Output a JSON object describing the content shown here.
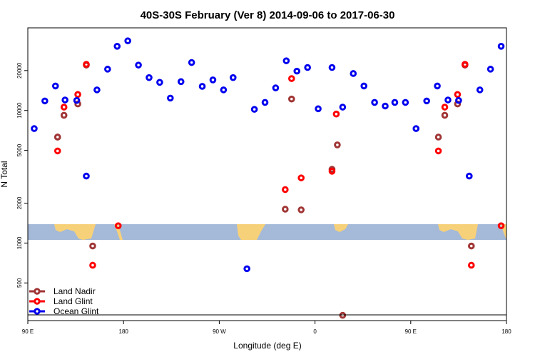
{
  "chart_data": {
    "type": "scatter",
    "title": "40S-30S February (Ver 8)   2014-09-06 to 2017-06-30",
    "xlabel": "Longitude (deg E)",
    "ylabel": "N Total",
    "x_ticks": [
      {
        "value": 90,
        "label": "90 E"
      },
      {
        "value": 180,
        "label": "180"
      },
      {
        "value": 270,
        "label": "90 W"
      },
      {
        "value": 360,
        "label": "0"
      },
      {
        "value": 450,
        "label": "90 E"
      },
      {
        "value": 540,
        "label": "180"
      }
    ],
    "xlim": [
      90,
      540
    ],
    "y_scale": "log",
    "y_ticks": [
      500,
      1000,
      2000,
      5000,
      10000,
      20000
    ],
    "ylim": [
      260,
      42000
    ],
    "colors": {
      "land_nadir": "#a03535",
      "land_glint": "#ff0000",
      "ocean_glint": "#0000ee",
      "ocean_band": "#a5bad8",
      "land_band": "#f7d17a"
    },
    "series": [
      {
        "name": "Land Nadir",
        "key": "land_nadir",
        "points": [
          [
            118,
            6300
          ],
          [
            118,
            6300
          ],
          [
            124,
            9200
          ],
          [
            137,
            11200
          ],
          [
            145,
            22000
          ],
          [
            151,
            950
          ],
          [
            332,
            1800
          ],
          [
            338,
            12200
          ],
          [
            347,
            1780
          ],
          [
            376,
            3600
          ],
          [
            381,
            5500
          ],
          [
            386,
            285
          ],
          [
            476,
            6300
          ],
          [
            482,
            9200
          ],
          [
            494,
            11200
          ],
          [
            501,
            22000
          ],
          [
            507,
            950
          ]
        ]
      },
      {
        "name": "Land Glint",
        "key": "land_glint",
        "points": [
          [
            118,
            4950
          ],
          [
            124,
            10600
          ],
          [
            137,
            13200
          ],
          [
            145,
            22300
          ],
          [
            151,
            680
          ],
          [
            175,
            1350
          ],
          [
            332,
            2530
          ],
          [
            338,
            17400
          ],
          [
            347,
            3100
          ],
          [
            376,
            3480
          ],
          [
            380,
            9400
          ],
          [
            476,
            4950
          ],
          [
            482,
            10600
          ],
          [
            494,
            13200
          ],
          [
            501,
            22300
          ],
          [
            507,
            680
          ],
          [
            535,
            1350
          ]
        ]
      },
      {
        "name": "Ocean Glint",
        "key": "ocean_glint",
        "points": [
          [
            96,
            7300
          ],
          [
            106,
            11800
          ],
          [
            116,
            15300
          ],
          [
            125,
            12000
          ],
          [
            136,
            11900
          ],
          [
            145,
            3200
          ],
          [
            155,
            14300
          ],
          [
            165,
            20500
          ],
          [
            174,
            30500
          ],
          [
            184,
            33500
          ],
          [
            194,
            22000
          ],
          [
            204,
            17700
          ],
          [
            214,
            16300
          ],
          [
            224,
            12400
          ],
          [
            234,
            16500
          ],
          [
            244,
            23000
          ],
          [
            254,
            15200
          ],
          [
            264,
            17000
          ],
          [
            274,
            14300
          ],
          [
            283,
            17700
          ],
          [
            296,
            640
          ],
          [
            303,
            10200
          ],
          [
            313,
            11500
          ],
          [
            323,
            14800
          ],
          [
            333,
            23700
          ],
          [
            343,
            19800
          ],
          [
            353,
            21100
          ],
          [
            363,
            10300
          ],
          [
            376,
            21100
          ],
          [
            386,
            10600
          ],
          [
            396,
            19000
          ],
          [
            406,
            15300
          ],
          [
            416,
            11500
          ],
          [
            426,
            10800
          ],
          [
            435,
            11500
          ],
          [
            445,
            11500
          ],
          [
            455,
            7300
          ],
          [
            465,
            11800
          ],
          [
            475,
            15300
          ],
          [
            485,
            12000
          ],
          [
            495,
            11900
          ],
          [
            505,
            3200
          ],
          [
            515,
            14300
          ],
          [
            525,
            20500
          ],
          [
            535,
            30500
          ]
        ]
      }
    ],
    "legend": {
      "position": "bottom-left",
      "entries": [
        "Land Nadir",
        "Land Glint",
        "Ocean Glint"
      ]
    },
    "grid": false
  }
}
